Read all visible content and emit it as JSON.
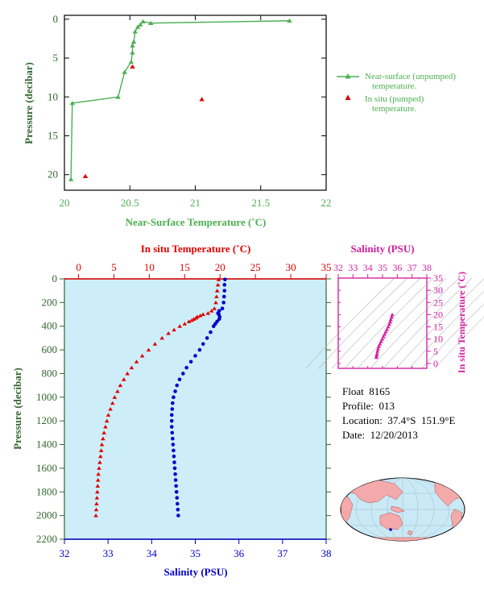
{
  "colors": {
    "green": "#4caf50",
    "red": "#e00000",
    "blue": "#0000cc",
    "magenta": "#d21fa0",
    "axis_dark": "#336633",
    "panel_bg": "#cdeef8",
    "land": "#f4aaaa",
    "ocean": "#c9e9f6"
  },
  "info": {
    "float": "Float  8165",
    "profile": "Profile:  013",
    "location": "Location:  37.4°S  151.9°E",
    "date": "Date:  12/20/2013"
  },
  "chart_data": [
    {
      "type": "scatter",
      "xlabel": "Near-Surface Temperature (˚C)",
      "ylabel": "Pressure (decibar)",
      "xlim": [
        20,
        22
      ],
      "ylim": [
        22,
        -0.5
      ],
      "xticks": [
        "20",
        "20.5",
        "21",
        "21.5",
        "22"
      ],
      "yticks": [
        "0",
        "5",
        "10",
        "15",
        "20"
      ],
      "series": [
        {
          "name": "Near-surface (unpumped)\ntemperature.",
          "style": "line-triangle",
          "x": [
            21.72,
            20.66,
            20.6,
            20.58,
            20.56,
            20.54,
            20.53,
            20.52,
            20.52,
            20.51,
            20.46,
            20.41,
            20.06,
            20.05
          ],
          "y": [
            0.2,
            0.5,
            0.3,
            0.7,
            1.0,
            1.6,
            2.9,
            3.4,
            4.3,
            5.5,
            6.8,
            10.0,
            10.8,
            20.6
          ]
        },
        {
          "name": "In situ (pumped)\ntemperature.",
          "style": "triangle",
          "x": [
            20.52,
            21.05,
            20.16
          ],
          "y": [
            6.1,
            10.3,
            20.2
          ]
        }
      ]
    },
    {
      "type": "scatter",
      "ylabel": "Pressure (decibar)",
      "top_xlabel": "In situ Temperature (˚C)",
      "bottom_xlabel": "Salinity (PSU)",
      "temp_lim": [
        -2,
        35
      ],
      "sal_lim": [
        32,
        38
      ],
      "ylim": [
        2200,
        0
      ],
      "temp_ticks": [
        "0",
        "5",
        "10",
        "15",
        "20",
        "25",
        "30",
        "35"
      ],
      "sal_ticks": [
        "32",
        "33",
        "34",
        "35",
        "36",
        "37",
        "38"
      ],
      "yticks": [
        "0",
        "200",
        "400",
        "600",
        "800",
        "1000",
        "1200",
        "1400",
        "1600",
        "1800",
        "2000",
        "2200"
      ],
      "temperature": {
        "pressure": [
          5,
          50,
          100,
          150,
          200,
          250,
          270,
          290,
          300,
          310,
          320,
          330,
          340,
          350,
          360,
          380,
          400,
          430,
          460,
          500,
          550,
          600,
          650,
          700,
          750,
          800,
          850,
          900,
          950,
          1000,
          1050,
          1100,
          1150,
          1200,
          1250,
          1300,
          1350,
          1400,
          1450,
          1500,
          1550,
          1600,
          1650,
          1700,
          1750,
          1800,
          1850,
          1900,
          1950,
          2000
        ],
        "values": [
          19.8,
          19.7,
          19.6,
          19.5,
          19.4,
          19.2,
          18.8,
          18.3,
          17.6,
          17.2,
          16.8,
          16.6,
          16.3,
          16.0,
          15.6,
          15.0,
          14.3,
          13.5,
          12.7,
          11.8,
          10.8,
          9.9,
          9.0,
          8.2,
          7.5,
          6.9,
          6.4,
          5.9,
          5.5,
          5.1,
          4.8,
          4.5,
          4.2,
          4.0,
          3.8,
          3.6,
          3.45,
          3.3,
          3.2,
          3.1,
          3.0,
          2.9,
          2.8,
          2.75,
          2.7,
          2.65,
          2.6,
          2.55,
          2.5,
          2.45
        ]
      },
      "salinity": {
        "pressure": [
          5,
          50,
          100,
          150,
          200,
          250,
          270,
          290,
          300,
          320,
          340,
          360,
          380,
          400,
          450,
          500,
          550,
          600,
          650,
          700,
          750,
          800,
          850,
          900,
          950,
          1000,
          1050,
          1100,
          1150,
          1200,
          1250,
          1300,
          1350,
          1400,
          1450,
          1500,
          1550,
          1600,
          1650,
          1700,
          1750,
          1800,
          1850,
          1900,
          1950,
          2000
        ],
        "values": [
          35.68,
          35.67,
          35.67,
          35.66,
          35.65,
          35.62,
          35.55,
          35.52,
          35.54,
          35.56,
          35.55,
          35.5,
          35.46,
          35.42,
          35.35,
          35.27,
          35.18,
          35.1,
          35.0,
          34.9,
          34.8,
          34.72,
          34.64,
          34.58,
          34.54,
          34.5,
          34.48,
          34.47,
          34.46,
          34.46,
          34.46,
          34.47,
          34.48,
          34.49,
          34.5,
          34.51,
          34.52,
          34.53,
          34.54,
          34.55,
          34.56,
          34.57,
          34.58,
          34.59,
          34.6,
          34.61
        ]
      }
    },
    {
      "type": "scatter",
      "xlabel": "Salinity (PSU)",
      "ylabel": "In situ Temperature (˚C)",
      "xlim": [
        32,
        38
      ],
      "ylim": [
        -2,
        35
      ],
      "xticks": [
        "32",
        "33",
        "34",
        "35",
        "36",
        "37",
        "38"
      ],
      "yticks": [
        "0",
        "5",
        "10",
        "15",
        "20",
        "25",
        "30",
        "35"
      ],
      "points": {
        "salinity": [
          34.58,
          34.6,
          34.63,
          34.66,
          34.7,
          34.75,
          34.82,
          34.9,
          34.98,
          35.06,
          35.14,
          35.22,
          35.3,
          35.38,
          35.46,
          35.52,
          35.56,
          35.62,
          35.66
        ],
        "temperature": [
          2.5,
          3.2,
          4.0,
          5.0,
          6.0,
          7.0,
          8.0,
          9.0,
          10.0,
          11.0,
          12.0,
          13.0,
          14.0,
          15.0,
          16.0,
          17.0,
          18.0,
          19.0,
          20.0
        ]
      }
    }
  ]
}
